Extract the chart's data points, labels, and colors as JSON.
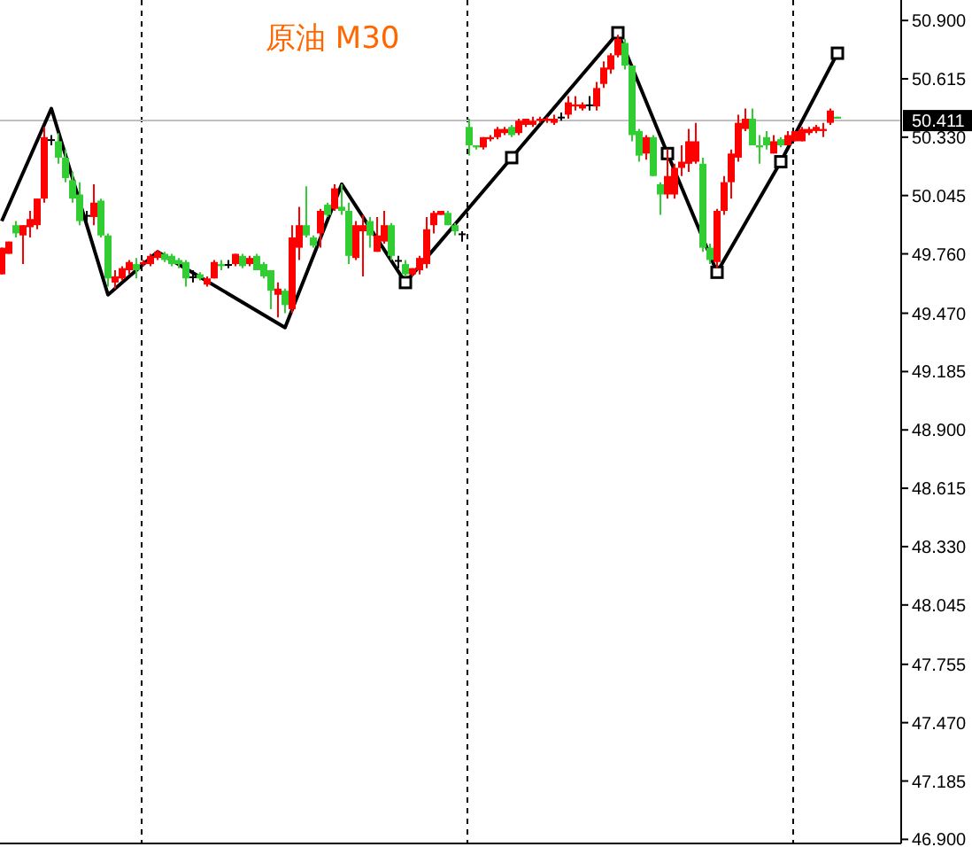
{
  "chart_data": {
    "type": "candlestick",
    "title": "原油 M30",
    "tick_labels": "y",
    "ylim": [
      46.88,
      51.0
    ],
    "yticks": [
      {
        "value": 50.9,
        "label": "50.900"
      },
      {
        "value": 50.615,
        "label": "50.615"
      },
      {
        "value": 50.33,
        "label": "50.330"
      },
      {
        "value": 50.045,
        "label": "50.045"
      },
      {
        "value": 49.76,
        "label": "49.760"
      },
      {
        "value": 49.47,
        "label": "49.470"
      },
      {
        "value": 49.185,
        "label": "49.185"
      },
      {
        "value": 48.9,
        "label": "48.900"
      },
      {
        "value": 48.615,
        "label": "48.615"
      },
      {
        "value": 48.33,
        "label": "48.330"
      },
      {
        "value": 48.045,
        "label": "48.045"
      },
      {
        "value": 47.755,
        "label": "47.755"
      },
      {
        "value": 47.47,
        "label": "47.470"
      },
      {
        "value": 47.185,
        "label": "47.185"
      },
      {
        "value": 46.9,
        "label": "46.900"
      }
    ],
    "ref_lines": [
      {
        "axis": "y",
        "value": 50.411,
        "label": "50.411",
        "color": "#c0c0c0"
      }
    ],
    "categories": [
      null,
      null,
      null,
      null,
      null,
      null,
      null,
      null,
      null,
      null,
      null,
      null,
      null,
      null,
      null,
      null,
      null,
      null,
      null,
      null,
      null,
      null,
      null,
      null,
      null,
      null,
      null,
      null,
      null,
      null,
      null,
      null,
      null,
      null,
      null,
      null,
      null,
      null,
      null,
      null,
      null,
      null,
      null,
      null,
      null,
      null,
      null,
      null,
      null,
      null,
      null,
      null,
      null,
      null,
      null,
      null,
      null,
      null,
      null,
      null,
      null,
      null,
      null,
      null,
      null,
      null,
      null,
      null,
      null,
      null,
      null,
      null,
      null,
      null,
      null,
      null,
      null,
      null,
      null,
      null,
      null,
      null,
      null,
      null,
      null,
      null,
      null,
      null,
      null,
      null,
      null,
      null,
      null,
      null,
      null,
      null,
      null,
      null,
      null,
      null,
      null,
      null,
      null,
      null,
      null,
      null,
      null,
      null,
      null,
      null,
      null,
      null,
      null,
      null,
      null,
      null,
      null,
      null,
      null
    ],
    "ohlc": [
      [
        49.66,
        49.79,
        49.66,
        49.79
      ],
      [
        49.76,
        49.82,
        49.76,
        49.82
      ],
      [
        49.9,
        49.92,
        49.84,
        49.86
      ],
      [
        49.85,
        49.9,
        49.71,
        49.9
      ],
      [
        49.89,
        49.97,
        49.84,
        49.93
      ],
      [
        49.9,
        50.03,
        49.88,
        50.03
      ],
      [
        50.03,
        50.38,
        50.01,
        50.33
      ],
      [
        50.32,
        50.34,
        50.29,
        50.32
      ],
      [
        50.31,
        50.35,
        50.2,
        50.23
      ],
      [
        50.23,
        50.27,
        50.11,
        50.13
      ],
      [
        50.12,
        50.16,
        50.01,
        50.03
      ],
      [
        50.05,
        50.11,
        49.9,
        49.92
      ],
      [
        49.95,
        49.97,
        49.92,
        49.95
      ],
      [
        49.94,
        50.1,
        49.9,
        50.01
      ],
      [
        50.02,
        50.03,
        49.84,
        49.85
      ],
      [
        49.85,
        49.86,
        49.6,
        49.64
      ],
      [
        49.62,
        49.68,
        49.59,
        49.65
      ],
      [
        49.64,
        49.7,
        49.63,
        49.69
      ],
      [
        49.68,
        49.73,
        49.66,
        49.72
      ],
      [
        49.71,
        49.74,
        49.64,
        49.68
      ],
      [
        49.71,
        49.73,
        49.7,
        49.72
      ],
      [
        49.71,
        49.76,
        49.7,
        49.75
      ],
      [
        49.74,
        49.78,
        49.73,
        49.77
      ],
      [
        49.76,
        49.77,
        49.72,
        49.73
      ],
      [
        49.75,
        49.76,
        49.7,
        49.71
      ],
      [
        49.73,
        49.74,
        49.69,
        49.71
      ],
      [
        49.72,
        49.73,
        49.6,
        49.64
      ],
      [
        49.65,
        49.68,
        49.62,
        49.65
      ],
      [
        49.66,
        49.67,
        49.63,
        49.64
      ],
      [
        49.61,
        49.65,
        49.6,
        49.64
      ],
      [
        49.64,
        49.73,
        49.64,
        49.72
      ],
      [
        49.71,
        49.73,
        49.68,
        49.7
      ],
      [
        49.71,
        49.73,
        49.69,
        49.71
      ],
      [
        49.71,
        49.76,
        49.7,
        49.76
      ],
      [
        49.75,
        49.76,
        49.69,
        49.7
      ],
      [
        49.71,
        49.75,
        49.7,
        49.74
      ],
      [
        49.75,
        49.76,
        49.68,
        49.68
      ],
      [
        49.71,
        49.72,
        49.64,
        49.65
      ],
      [
        49.68,
        49.68,
        49.49,
        49.58
      ],
      [
        49.56,
        49.62,
        49.45,
        49.59
      ],
      [
        49.58,
        49.59,
        49.47,
        49.51
      ],
      [
        49.49,
        49.9,
        49.47,
        49.84
      ],
      [
        49.79,
        49.99,
        49.73,
        49.9
      ],
      [
        49.9,
        50.09,
        49.84,
        49.85
      ],
      [
        49.84,
        49.85,
        49.79,
        49.8
      ],
      [
        49.86,
        49.98,
        49.79,
        49.97
      ],
      [
        50.0,
        50.01,
        49.94,
        49.95
      ],
      [
        49.98,
        50.1,
        49.97,
        50.08
      ],
      [
        49.99,
        50.1,
        49.95,
        49.97
      ],
      [
        49.97,
        50.01,
        49.71,
        49.75
      ],
      [
        49.74,
        49.92,
        49.73,
        49.9
      ],
      [
        49.87,
        49.95,
        49.65,
        49.9
      ],
      [
        49.92,
        49.94,
        49.79,
        49.85
      ],
      [
        49.77,
        49.94,
        49.77,
        49.85
      ],
      [
        49.82,
        49.97,
        49.81,
        49.9
      ],
      [
        49.9,
        49.91,
        49.73,
        49.75
      ],
      [
        49.73,
        49.75,
        49.69,
        49.73
      ],
      [
        49.71,
        49.73,
        49.65,
        49.66
      ],
      [
        49.66,
        49.69,
        49.65,
        49.69
      ],
      [
        49.68,
        49.75,
        49.66,
        49.74
      ],
      [
        49.71,
        49.94,
        49.69,
        49.88
      ],
      [
        49.9,
        49.97,
        49.86,
        49.96
      ],
      [
        49.95,
        49.97,
        49.95,
        49.97
      ],
      [
        49.96,
        49.97,
        49.9,
        49.9
      ],
      [
        49.9,
        49.91,
        49.85,
        49.87
      ],
      [
        49.86,
        49.87,
        49.82,
        49.86
      ],
      [
        50.38,
        50.42,
        50.24,
        50.29
      ],
      [
        50.29,
        50.29,
        50.27,
        50.28
      ],
      [
        50.28,
        50.33,
        50.27,
        50.33
      ],
      [
        50.32,
        50.34,
        50.31,
        50.33
      ],
      [
        50.33,
        50.38,
        50.32,
        50.37
      ],
      [
        50.35,
        50.38,
        50.34,
        50.37
      ],
      [
        50.38,
        50.39,
        50.33,
        50.34
      ],
      [
        50.35,
        50.42,
        50.34,
        50.41
      ],
      [
        50.39,
        50.42,
        50.38,
        50.42
      ],
      [
        50.39,
        50.43,
        50.38,
        50.41
      ],
      [
        50.41,
        50.43,
        50.4,
        50.42
      ],
      [
        50.41,
        50.43,
        50.4,
        50.42
      ],
      [
        50.4,
        50.44,
        50.39,
        50.42
      ],
      [
        50.43,
        50.45,
        50.41,
        50.43
      ],
      [
        50.44,
        50.53,
        50.42,
        50.5
      ],
      [
        50.48,
        50.53,
        50.46,
        50.49
      ],
      [
        50.47,
        50.5,
        50.46,
        50.49
      ],
      [
        50.49,
        50.53,
        50.46,
        50.49
      ],
      [
        50.48,
        50.6,
        50.46,
        50.57
      ],
      [
        50.59,
        50.7,
        50.57,
        50.67
      ],
      [
        50.66,
        50.74,
        50.64,
        50.73
      ],
      [
        50.73,
        50.83,
        50.72,
        50.81
      ],
      [
        50.79,
        50.81,
        50.66,
        50.68
      ],
      [
        50.68,
        50.68,
        50.31,
        50.34
      ],
      [
        50.36,
        50.37,
        50.21,
        50.24
      ],
      [
        50.25,
        50.34,
        50.22,
        50.33
      ],
      [
        50.33,
        50.34,
        50.14,
        50.14
      ],
      [
        50.1,
        50.11,
        49.95,
        50.05
      ],
      [
        50.05,
        50.27,
        50.03,
        50.14
      ],
      [
        50.05,
        50.2,
        50.03,
        50.18
      ],
      [
        50.18,
        50.29,
        50.14,
        50.21
      ],
      [
        50.2,
        50.37,
        50.16,
        50.31
      ],
      [
        50.21,
        50.4,
        50.2,
        50.31
      ],
      [
        50.2,
        50.23,
        49.77,
        49.79
      ],
      [
        49.79,
        49.81,
        49.71,
        49.73
      ],
      [
        49.72,
        49.98,
        49.69,
        49.97
      ],
      [
        49.97,
        50.14,
        49.95,
        50.11
      ],
      [
        50.11,
        50.27,
        50.03,
        50.25
      ],
      [
        50.23,
        50.44,
        50.21,
        50.4
      ],
      [
        50.37,
        50.47,
        50.36,
        50.42
      ],
      [
        50.42,
        50.47,
        50.29,
        50.29
      ],
      [
        50.29,
        50.34,
        50.2,
        50.28
      ],
      [
        50.33,
        50.36,
        50.27,
        50.29
      ],
      [
        50.25,
        50.34,
        50.25,
        50.31
      ],
      [
        50.32,
        50.33,
        50.28,
        50.29
      ],
      [
        50.29,
        50.36,
        50.29,
        50.34
      ],
      [
        50.31,
        50.36,
        50.31,
        50.36
      ],
      [
        50.31,
        50.38,
        50.31,
        50.37
      ],
      [
        50.35,
        50.38,
        50.34,
        50.37
      ],
      [
        50.36,
        50.39,
        50.35,
        50.38
      ],
      [
        50.36,
        50.4,
        50.33,
        50.37
      ],
      [
        50.4,
        50.47,
        50.39,
        50.46
      ],
      [
        50.43,
        50.43,
        50.42,
        50.42
      ]
    ],
    "colors": [
      "#ff0000",
      "#ff0000",
      "#32cd32",
      "#ff0000",
      "#ff0000",
      "#ff0000",
      "#ff0000",
      "#000000",
      "#32cd32",
      "#32cd32",
      "#32cd32",
      "#32cd32",
      "#000000",
      "#ff0000",
      "#32cd32",
      "#32cd32",
      "#ff0000",
      "#ff0000",
      "#ff0000",
      "#32cd32",
      "#ff0000",
      "#ff0000",
      "#ff0000",
      "#32cd32",
      "#32cd32",
      "#32cd32",
      "#32cd32",
      "#000000",
      "#32cd32",
      "#ff0000",
      "#ff0000",
      "#32cd32",
      "#000000",
      "#ff0000",
      "#32cd32",
      "#ff0000",
      "#32cd32",
      "#32cd32",
      "#32cd32",
      "#ff0000",
      "#32cd32",
      "#ff0000",
      "#ff0000",
      "#32cd32",
      "#32cd32",
      "#ff0000",
      "#32cd32",
      "#ff0000",
      "#32cd32",
      "#32cd32",
      "#ff0000",
      "#ff0000",
      "#32cd32",
      "#ff0000",
      "#ff0000",
      "#32cd32",
      "#000000",
      "#32cd32",
      "#ff0000",
      "#ff0000",
      "#ff0000",
      "#ff0000",
      "#ff0000",
      "#32cd32",
      "#32cd32",
      "#000000",
      "#32cd32",
      "#32cd32",
      "#ff0000",
      "#ff0000",
      "#ff0000",
      "#ff0000",
      "#32cd32",
      "#ff0000",
      "#ff0000",
      "#ff0000",
      "#ff0000",
      "#ff0000",
      "#ff0000",
      "#000000",
      "#ff0000",
      "#ff0000",
      "#ff0000",
      "#000000",
      "#ff0000",
      "#ff0000",
      "#ff0000",
      "#ff0000",
      "#32cd32",
      "#32cd32",
      "#32cd32",
      "#ff0000",
      "#32cd32",
      "#32cd32",
      "#ff0000",
      "#ff0000",
      "#ff0000",
      "#ff0000",
      "#ff0000",
      "#32cd32",
      "#32cd32",
      "#ff0000",
      "#ff0000",
      "#ff0000",
      "#ff0000",
      "#ff0000",
      "#32cd32",
      "#32cd32",
      "#32cd32",
      "#ff0000",
      "#32cd32",
      "#ff0000",
      "#ff0000",
      "#ff0000",
      "#ff0000",
      "#ff0000",
      "#ff0000",
      "#ff0000",
      "#32cd32"
    ],
    "series": [
      {
        "type": "line",
        "color": "#000000",
        "marker": "none",
        "line_style": "solid",
        "values": [
          49.92,
          null,
          null,
          null,
          null,
          null,
          null,
          50.47,
          null,
          null,
          null,
          null,
          null,
          null,
          null,
          49.56,
          null,
          null,
          null,
          null,
          null,
          null,
          49.77,
          null,
          null,
          null,
          null,
          null,
          null,
          null,
          null,
          null,
          null,
          null,
          null,
          null,
          null,
          null,
          null,
          null,
          49.4,
          null,
          null,
          null,
          null,
          null,
          null,
          null,
          50.1,
          null,
          null,
          null,
          null,
          null,
          null,
          null,
          null,
          49.62,
          null,
          null,
          null,
          null,
          null,
          null,
          null,
          null,
          null,
          null,
          null,
          null,
          null,
          null,
          null,
          null,
          null,
          null,
          null,
          null,
          null,
          null,
          null,
          null,
          null,
          null,
          null,
          null,
          null,
          null,
          null,
          null,
          null,
          null,
          null,
          null,
          null,
          null,
          null,
          null,
          null,
          null,
          null,
          null,
          null,
          null,
          null,
          null,
          null,
          null,
          null,
          null,
          null,
          null,
          null,
          null,
          null,
          null,
          null,
          null,
          null
        ]
      },
      {
        "type": "line",
        "color": "#000000",
        "marker": "square",
        "line_style": "solid",
        "values": [
          null,
          null,
          null,
          null,
          null,
          null,
          null,
          null,
          null,
          null,
          null,
          null,
          null,
          null,
          null,
          null,
          null,
          null,
          null,
          null,
          null,
          null,
          null,
          null,
          null,
          null,
          null,
          null,
          null,
          null,
          null,
          null,
          null,
          null,
          null,
          null,
          null,
          null,
          null,
          null,
          null,
          null,
          null,
          null,
          null,
          null,
          null,
          null,
          null,
          null,
          null,
          null,
          null,
          null,
          null,
          null,
          null,
          49.62,
          null,
          null,
          null,
          null,
          null,
          null,
          null,
          null,
          null,
          null,
          null,
          null,
          null,
          null,
          50.23,
          null,
          null,
          null,
          null,
          null,
          null,
          null,
          null,
          null,
          null,
          null,
          null,
          null,
          null,
          50.84,
          null,
          null,
          null,
          null,
          null,
          null,
          50.25,
          null,
          null,
          null,
          null,
          null,
          null,
          49.67,
          null,
          null,
          null,
          null,
          null,
          null,
          null,
          null,
          50.21,
          null,
          null,
          null,
          null,
          null,
          null,
          null,
          50.74
        ]
      }
    ]
  }
}
